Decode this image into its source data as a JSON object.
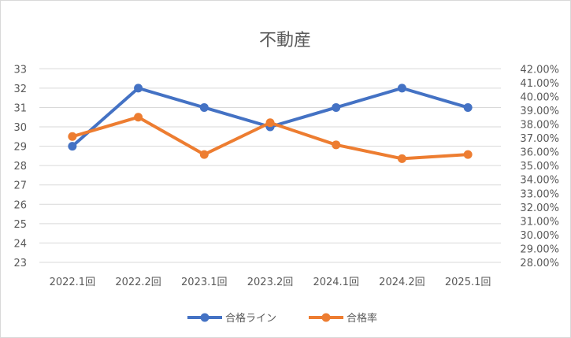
{
  "chart_data": {
    "type": "line",
    "title": "不動産",
    "categories": [
      "2022.1回",
      "2022.2回",
      "2023.1回",
      "2023.2回",
      "2024.1回",
      "2024.2回",
      "2025.1回"
    ],
    "series": [
      {
        "name": "合格ライン",
        "axis": "left",
        "color": "#4472C4",
        "values": [
          29,
          32,
          31,
          30,
          31,
          32,
          31
        ]
      },
      {
        "name": "合格率",
        "axis": "right",
        "color": "#ED7D31",
        "values": [
          37.1,
          38.5,
          35.8,
          38.1,
          36.5,
          35.5,
          35.8
        ]
      }
    ],
    "y_left": {
      "min": 23,
      "max": 33,
      "step": 1,
      "tick_labels": [
        "23",
        "24",
        "25",
        "26",
        "27",
        "28",
        "29",
        "30",
        "31",
        "32",
        "33"
      ]
    },
    "y_right": {
      "min": 28,
      "max": 42,
      "step": 1,
      "tick_labels": [
        "28.00%",
        "29.00%",
        "30.00%",
        "31.00%",
        "32.00%",
        "33.00%",
        "34.00%",
        "35.00%",
        "36.00%",
        "37.00%",
        "38.00%",
        "39.00%",
        "40.00%",
        "41.00%",
        "42.00%"
      ]
    },
    "grid": true,
    "legend_position": "bottom"
  }
}
